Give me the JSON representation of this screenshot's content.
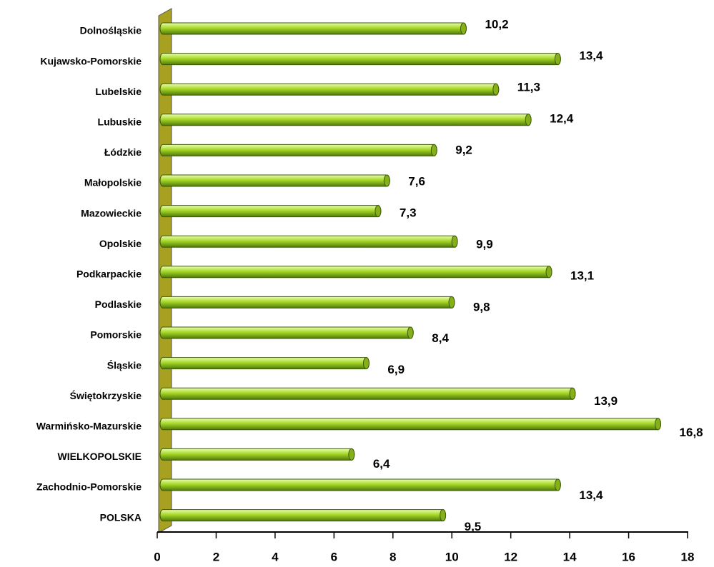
{
  "chart_data": {
    "type": "bar",
    "orientation": "horizontal",
    "categories": [
      "Dolnośląskie",
      "Kujawsko-Pomorskie",
      "Lubelskie",
      "Lubuskie",
      "Łódzkie",
      "Małopolskie",
      "Mazowieckie",
      "Opolskie",
      "Podkarpackie",
      "Podlaskie",
      "Pomorskie",
      "Śląskie",
      "Świętokrzyskie",
      "Warmińsko-Mazurskie",
      "WIELKOPOLSKIE",
      "Zachodnio-Pomorskie",
      "POLSKA"
    ],
    "values": [
      10.2,
      13.4,
      11.3,
      12.4,
      9.2,
      7.6,
      7.3,
      9.9,
      13.1,
      9.8,
      8.4,
      6.9,
      13.9,
      16.8,
      6.4,
      13.4,
      9.5
    ],
    "value_labels": [
      "10,2",
      "13,4",
      "11,3",
      "12,4",
      "9,2",
      "7,6",
      "7,3",
      "9,9",
      "13,1",
      "9,8",
      "8,4",
      "6,9",
      "13,9",
      "16,8",
      "6,4",
      "13,4",
      "9,5"
    ],
    "color": "#a8d828",
    "xlim": [
      0,
      18
    ],
    "xticks": [
      0,
      2,
      4,
      6,
      8,
      10,
      12,
      14,
      16,
      18
    ]
  }
}
